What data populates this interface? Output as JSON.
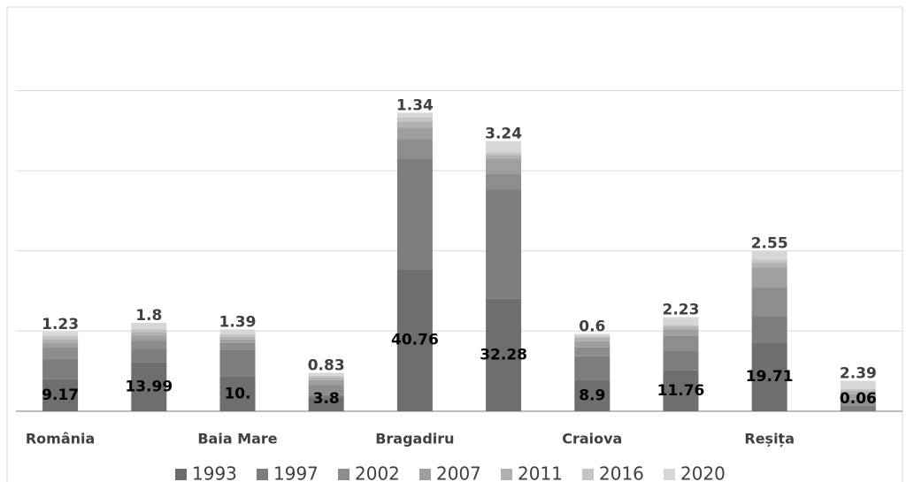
{
  "chart_data": {
    "type": "stacked_bar",
    "categories": [
      "România",
      null,
      "Baia Mare",
      null,
      "Bragadiru",
      null,
      "Craiova",
      null,
      "Reșița",
      null
    ],
    "series": [
      {
        "name": "1993",
        "color": "#6e6e6e",
        "show_labels": true,
        "values": [
          9.17,
          13.99,
          10,
          3.8,
          40.76,
          32.28,
          8.9,
          11.76,
          19.71,
          0.06
        ],
        "value_labels": [
          "9.17",
          "13.99",
          "10.",
          "3.8",
          "40.76",
          "32.28",
          "8.9",
          "11.76",
          "19.71",
          "0.06"
        ]
      },
      {
        "name": "1997",
        "color": "#7d7d7d",
        "values": [
          5.8,
          4,
          7.6,
          0.8,
          31.7,
          31.3,
          6.9,
          5.6,
          7.6,
          1.5
        ]
      },
      {
        "name": "2002",
        "color": "#8d8d8d",
        "values": [
          3.3,
          2.3,
          2,
          3,
          5.6,
          4.6,
          2.5,
          4.3,
          8.1,
          1.8
        ]
      },
      {
        "name": "2007",
        "color": "#9f9f9f",
        "values": [
          1.5,
          1.5,
          1,
          1.3,
          3.3,
          4.3,
          1.8,
          1.8,
          5.8,
          1.5
        ]
      },
      {
        "name": "2011",
        "color": "#b1b1b1",
        "values": [
          1,
          1,
          0.8,
          0.8,
          1.8,
          1,
          1,
          0.8,
          1.3,
          1
        ]
      },
      {
        "name": "2016",
        "color": "#c4c4c4",
        "values": [
          0.8,
          0.8,
          0.7,
          0.5,
          1.2,
          0.8,
          0.5,
          0.5,
          1,
          0.5
        ]
      },
      {
        "name": "2020",
        "color": "#d7d7d7",
        "show_labels": true,
        "values": [
          1.23,
          1.8,
          1.39,
          0.83,
          1.34,
          3.24,
          0.6,
          2.23,
          2.55,
          2.39
        ]
      }
    ],
    "ylim": [
      0,
      116
    ],
    "yticks": [
      0,
      23,
      46,
      69,
      92
    ],
    "grid": true,
    "legend": "bottom"
  }
}
